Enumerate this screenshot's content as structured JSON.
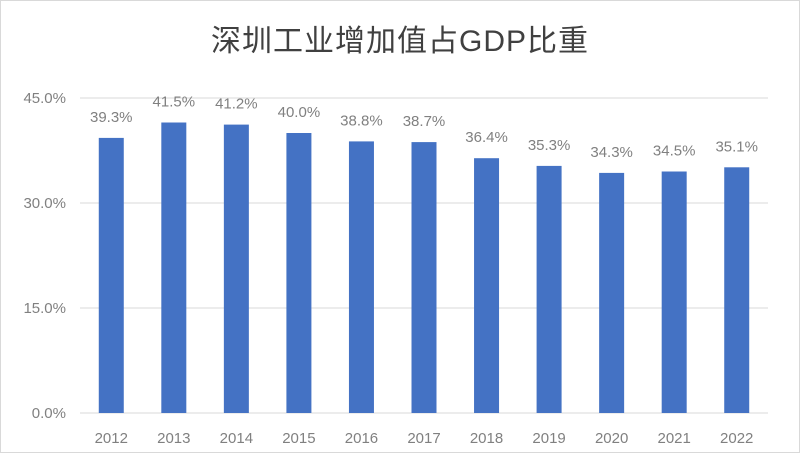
{
  "chart_data": {
    "type": "bar",
    "title": "深圳工业增加值占GDP比重",
    "categories": [
      "2012",
      "2013",
      "2014",
      "2015",
      "2016",
      "2017",
      "2018",
      "2019",
      "2020",
      "2021",
      "2022"
    ],
    "values": [
      39.3,
      41.5,
      41.2,
      40.0,
      38.8,
      38.7,
      36.4,
      35.3,
      34.3,
      34.5,
      35.1
    ],
    "data_labels": [
      "39.3%",
      "41.5%",
      "41.2%",
      "40.0%",
      "38.8%",
      "38.7%",
      "36.4%",
      "35.3%",
      "34.3%",
      "34.5%",
      "35.1%"
    ],
    "yticks": [
      0,
      15,
      30,
      45
    ],
    "ytick_labels": [
      "0.0%",
      "15.0%",
      "30.0%",
      "45.0%"
    ],
    "ylim": [
      0,
      45
    ],
    "xlabel": "",
    "ylabel": "",
    "grid": true,
    "legend": "none",
    "colors": {
      "bar": "#4472c4",
      "grid": "#d9d9d9",
      "text": "#808080",
      "title": "#404040"
    }
  }
}
